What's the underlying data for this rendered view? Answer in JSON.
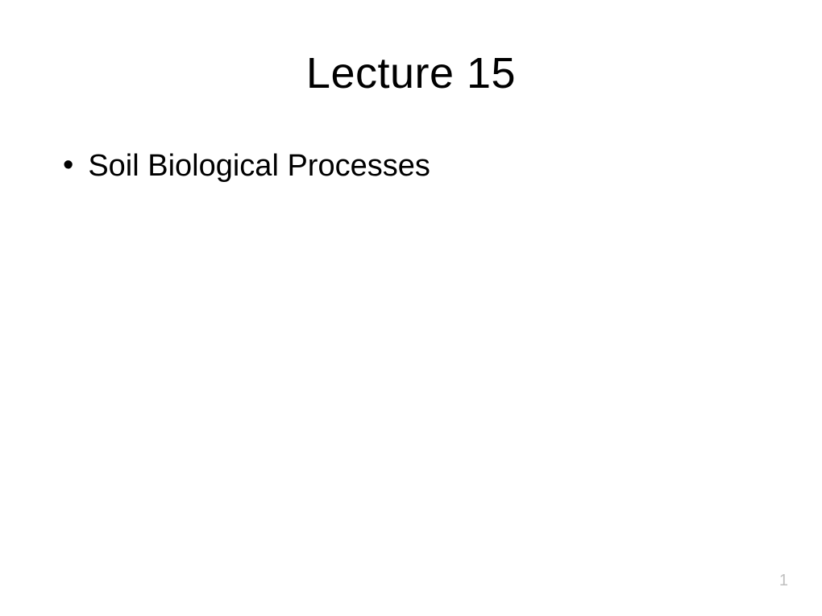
{
  "slide": {
    "title": "Lecture 15",
    "title_fontsize": 54,
    "title_color": "#000000",
    "bullets": [
      {
        "text": "Soil Biological Processes"
      }
    ],
    "bullet_fontsize": 38,
    "bullet_color": "#000000",
    "bullet_marker": "•",
    "page_number": "1",
    "page_number_color": "#bfbfbf",
    "page_number_fontsize": 20,
    "background_color": "#ffffff"
  }
}
